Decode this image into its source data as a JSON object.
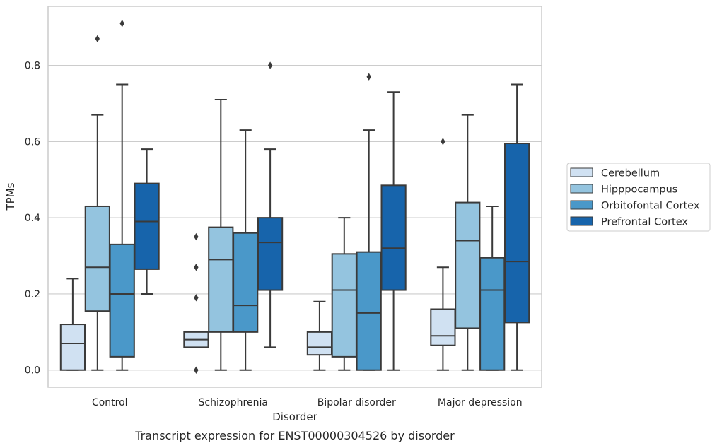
{
  "chart_data": {
    "type": "box",
    "title": "",
    "caption": "Transcript expression for ENST00000304526 by disorder",
    "xlabel": "Disorder",
    "ylabel": "TPMs",
    "ylim": [
      -0.045,
      0.955
    ],
    "yticks": [
      0.0,
      0.2,
      0.4,
      0.6,
      0.8
    ],
    "ytick_labels": [
      "0.0",
      "0.2",
      "0.4",
      "0.6",
      "0.8"
    ],
    "grid": "horizontal",
    "legend_position": "right",
    "categories": [
      "Control",
      "Schizophrenia",
      "Bipolar disorder",
      "Major depression"
    ],
    "series": [
      {
        "name": "Cerebellum",
        "color": "#d0e1f2",
        "boxes": [
          {
            "whisker_low": 0.0,
            "q1": 0.0,
            "median": 0.07,
            "q3": 0.12,
            "whisker_high": 0.24,
            "outliers": []
          },
          {
            "whisker_low": 0.06,
            "q1": 0.06,
            "median": 0.08,
            "q3": 0.1,
            "whisker_high": 0.1,
            "outliers": [
              0.35,
              0.27,
              0.19,
              0.0
            ]
          },
          {
            "whisker_low": 0.0,
            "q1": 0.04,
            "median": 0.06,
            "q3": 0.1,
            "whisker_high": 0.18,
            "outliers": []
          },
          {
            "whisker_low": 0.0,
            "q1": 0.065,
            "median": 0.09,
            "q3": 0.16,
            "whisker_high": 0.27,
            "outliers": [
              0.6
            ]
          }
        ]
      },
      {
        "name": "Hipppocampus",
        "color": "#94c4df",
        "boxes": [
          {
            "whisker_low": 0.0,
            "q1": 0.155,
            "median": 0.27,
            "q3": 0.43,
            "whisker_high": 0.67,
            "outliers": [
              0.87
            ]
          },
          {
            "whisker_low": 0.0,
            "q1": 0.1,
            "median": 0.29,
            "q3": 0.375,
            "whisker_high": 0.71,
            "outliers": []
          },
          {
            "whisker_low": 0.0,
            "q1": 0.035,
            "median": 0.21,
            "q3": 0.305,
            "whisker_high": 0.4,
            "outliers": []
          },
          {
            "whisker_low": 0.0,
            "q1": 0.11,
            "median": 0.34,
            "q3": 0.44,
            "whisker_high": 0.67,
            "outliers": []
          }
        ]
      },
      {
        "name": "Orbitofontal Cortex",
        "color": "#4a98c9",
        "boxes": [
          {
            "whisker_low": 0.0,
            "q1": 0.035,
            "median": 0.2,
            "q3": 0.33,
            "whisker_high": 0.75,
            "outliers": [
              0.91
            ]
          },
          {
            "whisker_low": 0.0,
            "q1": 0.1,
            "median": 0.17,
            "q3": 0.36,
            "whisker_high": 0.63,
            "outliers": []
          },
          {
            "whisker_low": 0.0,
            "q1": 0.0,
            "median": 0.15,
            "q3": 0.31,
            "whisker_high": 0.63,
            "outliers": [
              0.77
            ]
          },
          {
            "whisker_low": 0.0,
            "q1": 0.0,
            "median": 0.21,
            "q3": 0.295,
            "whisker_high": 0.43,
            "outliers": []
          }
        ]
      },
      {
        "name": "Prefrontal Cortex",
        "color": "#1764ab",
        "boxes": [
          {
            "whisker_low": 0.2,
            "q1": 0.265,
            "median": 0.39,
            "q3": 0.49,
            "whisker_high": 0.58,
            "outliers": []
          },
          {
            "whisker_low": 0.06,
            "q1": 0.21,
            "median": 0.335,
            "q3": 0.4,
            "whisker_high": 0.58,
            "outliers": [
              0.8
            ]
          },
          {
            "whisker_low": 0.0,
            "q1": 0.21,
            "median": 0.32,
            "q3": 0.485,
            "whisker_high": 0.73,
            "outliers": []
          },
          {
            "whisker_low": 0.0,
            "q1": 0.125,
            "median": 0.285,
            "q3": 0.595,
            "whisker_high": 0.75,
            "outliers": []
          }
        ]
      }
    ]
  }
}
